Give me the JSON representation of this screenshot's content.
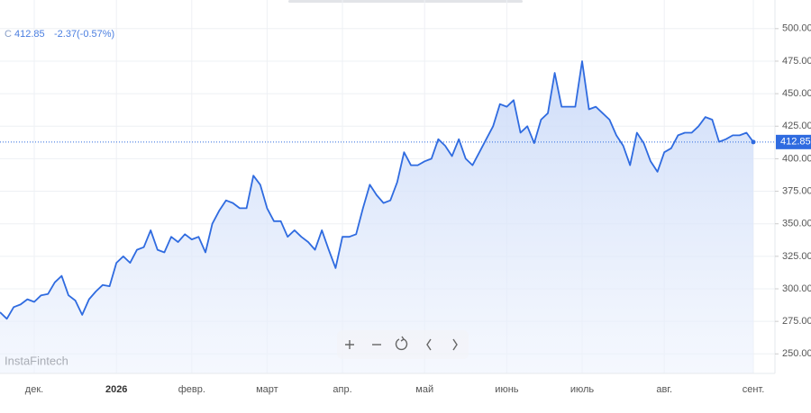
{
  "chart_data": {
    "type": "area",
    "annotations": [
      "C",
      "-2.37",
      "(-0.57%)"
    ],
    "watermark": "InstaFintech",
    "color": "#2f6be0",
    "fill": "#dbe6fb",
    "grid": true,
    "last_value_line": true,
    "categories": [
      null,
      null,
      null,
      null,
      null,
      "дек.",
      null,
      null,
      null,
      null,
      null,
      null,
      null,
      null,
      null,
      null,
      null,
      "2026",
      null,
      null,
      null,
      null,
      null,
      null,
      null,
      null,
      null,
      null,
      "февр.",
      null,
      null,
      null,
      null,
      null,
      null,
      null,
      null,
      null,
      null,
      "март",
      null,
      null,
      null,
      null,
      null,
      null,
      null,
      null,
      null,
      null,
      "апр.",
      null,
      null,
      null,
      null,
      null,
      null,
      null,
      null,
      null,
      null,
      null,
      "май",
      null,
      null,
      null,
      null,
      null,
      null,
      null,
      null,
      null,
      null,
      null,
      "июнь",
      null,
      null,
      null,
      null,
      null,
      null,
      null,
      null,
      null,
      null,
      "июль",
      null,
      null,
      null,
      null,
      null,
      null,
      null,
      null,
      null,
      null,
      null,
      "авг.",
      null,
      null,
      null,
      null,
      null,
      null,
      null,
      null,
      null,
      null,
      null,
      null,
      "сент."
    ],
    "values": [
      282,
      277,
      286,
      288,
      292,
      290,
      295,
      296,
      305,
      310,
      295,
      291,
      280,
      292,
      298,
      303,
      302,
      320,
      325,
      320,
      330,
      332,
      345,
      330,
      328,
      340,
      336,
      342,
      338,
      340,
      328,
      350,
      360,
      368,
      366,
      362,
      362,
      387,
      380,
      362,
      352,
      352,
      340,
      345,
      340,
      336,
      330,
      345,
      330,
      316,
      340,
      340,
      342,
      362,
      380,
      372,
      366,
      368,
      382,
      405,
      395,
      395,
      398,
      400,
      415,
      410,
      402,
      415,
      400,
      395,
      405,
      415,
      425,
      442,
      440,
      445,
      420,
      425,
      412,
      430,
      435,
      466,
      440,
      440,
      440,
      475,
      438,
      440,
      435,
      430,
      418,
      410,
      395,
      420,
      412,
      398,
      390,
      405,
      408,
      418,
      420,
      420,
      425,
      432,
      430,
      413,
      415,
      418,
      418,
      420,
      412.85
    ],
    "ylim": [
      235,
      522
    ],
    "yticks": [
      {
        "value": 250,
        "label": "250.00"
      },
      {
        "value": 275,
        "label": "275.00"
      },
      {
        "value": 300,
        "label": "300.00"
      },
      {
        "value": 325,
        "label": "325.00"
      },
      {
        "value": 350,
        "label": "350.00"
      },
      {
        "value": 375,
        "label": "375.00"
      },
      {
        "value": 400,
        "label": "400.00"
      },
      {
        "value": 425,
        "label": "425.00"
      },
      {
        "value": 450,
        "label": "450.00"
      },
      {
        "value": 475,
        "label": "475.00"
      },
      {
        "value": 500,
        "label": "500.00"
      }
    ]
  }
}
